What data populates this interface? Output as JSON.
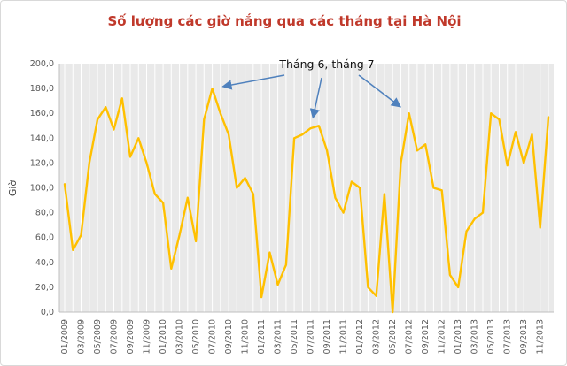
{
  "chart_data": {
    "type": "line",
    "title": "Số lượng các giờ nắng qua các tháng tại Hà Nội",
    "title_color": "#C0392B",
    "ylabel": "Giờ",
    "xlabel": "",
    "ylim": [
      0,
      200
    ],
    "ytick_step": 20,
    "ytick_labels": [
      "0,0",
      "20,0",
      "40,0",
      "60,0",
      "80,0",
      "100,0",
      "120,0",
      "140,0",
      "160,0",
      "180,0",
      "200,0"
    ],
    "xtick_every": 2,
    "plot_bg": "#E9E9E9",
    "grid_color": "#FFFFFF",
    "axis_line_color": "#BFBFBF",
    "axis_text_color": "#595959",
    "legend": false,
    "x": [
      "01/2009",
      "02/2009",
      "03/2009",
      "04/2009",
      "05/2009",
      "06/2009",
      "07/2009",
      "08/2009",
      "09/2009",
      "10/2009",
      "11/2009",
      "12/2009",
      "01/2010",
      "02/2010",
      "03/2010",
      "04/2010",
      "05/2010",
      "06/2010",
      "07/2010",
      "08/2010",
      "09/2010",
      "10/2010",
      "11/2010",
      "12/2010",
      "01/2011",
      "02/2011",
      "03/2011",
      "04/2011",
      "05/2011",
      "06/2011",
      "07/2011",
      "08/2011",
      "09/2011",
      "10/2011",
      "11/2011",
      "12/2011",
      "01/2012",
      "02/2012",
      "03/2012",
      "04/2012",
      "05/2012",
      "06/2012",
      "07/2012",
      "08/2012",
      "09/2012",
      "10/2012",
      "11/2012",
      "12/2012",
      "01/2013",
      "02/2013",
      "03/2013",
      "04/2013",
      "05/2013",
      "06/2013",
      "07/2013",
      "08/2013",
      "09/2013",
      "10/2013",
      "11/2013",
      "12/2013"
    ],
    "series": [
      {
        "color": "#FFC000",
        "values": [
          103,
          50,
          62,
          120,
          155,
          165,
          147,
          172,
          125,
          140,
          120,
          95,
          88,
          35,
          62,
          92,
          57,
          155,
          180,
          160,
          143,
          100,
          108,
          95,
          12,
          48,
          22,
          38,
          140,
          143,
          148,
          150,
          130,
          92,
          80,
          105,
          100,
          20,
          13,
          95,
          0,
          120,
          160,
          130,
          135,
          100,
          98,
          30,
          20,
          65,
          75,
          80,
          160,
          155,
          118,
          145,
          120,
          143,
          68,
          157
        ]
      }
    ],
    "annotation": {
      "text": "Tháng 6, tháng 7",
      "arrow_color": "#4F81BD",
      "targets": [
        "07/2010",
        "07/2011",
        "07/2012"
      ]
    }
  }
}
